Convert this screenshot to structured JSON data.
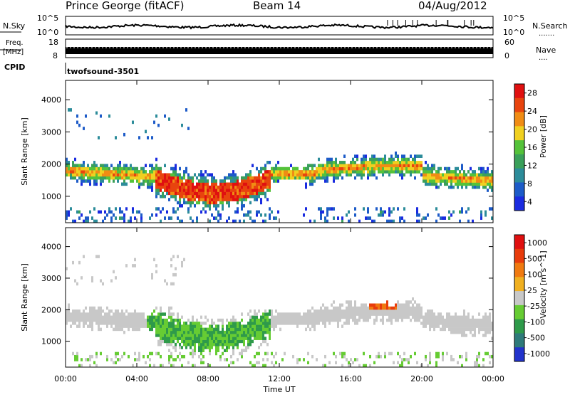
{
  "header": {
    "station": "Prince George (fitACF)",
    "beam": "Beam 14",
    "date": "04/Aug/2012"
  },
  "noise_panel": {
    "left_label": "N.Sky",
    "right_label": "N.Search",
    "right_dots": ".......",
    "left_ticks": [
      "10^5",
      "10^0"
    ],
    "right_ticks": [
      "10^5",
      "10^0"
    ]
  },
  "freq_panel": {
    "left_label_line1": "Freq.",
    "left_label_line2": "[MHz]",
    "left_ticks": [
      "18",
      "8"
    ],
    "right_label": "Nave",
    "right_dots": "....",
    "right_ticks": [
      "60",
      "0"
    ]
  },
  "cpid_panel": {
    "label": "CPID",
    "program": "twofsound",
    "id": "-3501"
  },
  "colors": {
    "power": [
      "#1a2be0",
      "#1d5bc8",
      "#2c8c9a",
      "#3aa05a",
      "#54c23a",
      "#f0d020",
      "#f08c14",
      "#e8440e",
      "#e01010"
    ],
    "velocity": [
      "#2233cc",
      "#2e7a7a",
      "#2e9a4a",
      "#66cc33",
      "#c8c8c8",
      "#f0b020",
      "#f07a10",
      "#e83c0c",
      "#e01010"
    ]
  },
  "chart_data": [
    {
      "type": "heatmap",
      "title": "",
      "xlabel": "Time UT",
      "ylabel": "Slant Range [km]",
      "x_range": [
        "00:00",
        "24:00"
      ],
      "x_ticks": [
        "00:00",
        "04:00",
        "08:00",
        "12:00",
        "16:00",
        "20:00",
        "00:00"
      ],
      "ylim": [
        180,
        4600
      ],
      "y_ticks": [
        "1000",
        "2000",
        "3000",
        "4000"
      ],
      "colorbar": {
        "label": "Power [dB]",
        "range": [
          0,
          30
        ],
        "ticks": [
          "28",
          "24",
          "20",
          "16",
          "12",
          "8",
          "4"
        ]
      }
    },
    {
      "type": "heatmap",
      "title": "",
      "xlabel": "Time UT",
      "ylabel": "Slant Range [km]",
      "x_range": [
        "00:00",
        "24:00"
      ],
      "x_ticks": [
        "00:00",
        "04:00",
        "08:00",
        "12:00",
        "16:00",
        "20:00",
        "00:00"
      ],
      "ylim": [
        180,
        4600
      ],
      "y_ticks": [
        "1000",
        "2000",
        "3000",
        "4000"
      ],
      "colorbar": {
        "label": "Velocity [m s^-1]",
        "ticks": [
          "1000",
          "500",
          "100",
          "25",
          "-25",
          "-100",
          "-500",
          "-1000"
        ]
      }
    }
  ]
}
